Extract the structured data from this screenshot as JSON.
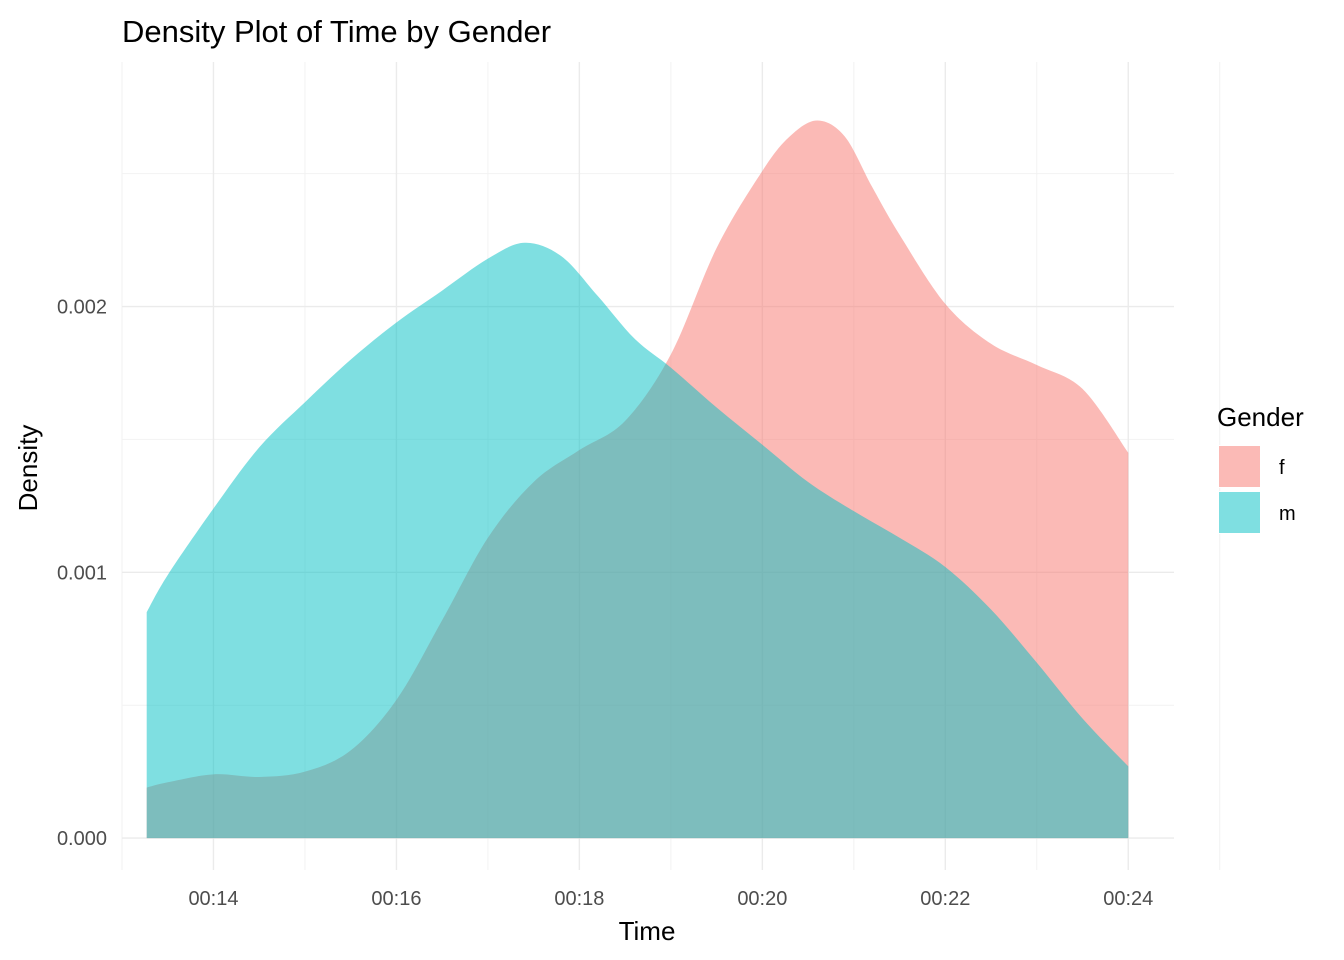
{
  "chart_data": {
    "type": "area",
    "subtype": "density",
    "title": "Density Plot of Time by Gender",
    "xlabel": "Time",
    "ylabel": "Density",
    "x_unit": "minutes",
    "xlim": [
      13.0,
      24.5
    ],
    "ylim": [
      -0.00012,
      0.00292
    ],
    "x_ticks": [
      14,
      16,
      18,
      20,
      22,
      24
    ],
    "x_tick_labels": [
      "00:14",
      "00:16",
      "00:18",
      "00:20",
      "00:22",
      "00:24"
    ],
    "y_ticks": [
      0.0,
      0.001,
      0.002
    ],
    "y_tick_labels": [
      "0.000",
      "0.001",
      "0.002"
    ],
    "grid": true,
    "legend": {
      "title": "Gender",
      "position": "right"
    },
    "fill_opacity": 0.5,
    "series": [
      {
        "name": "f",
        "color": "#F8766D",
        "x": [
          13.27,
          13.5,
          14.0,
          14.5,
          15.0,
          15.5,
          16.0,
          16.5,
          17.0,
          17.5,
          18.0,
          18.5,
          19.0,
          19.5,
          20.0,
          20.3,
          20.6,
          20.9,
          21.2,
          21.5,
          22.0,
          22.5,
          23.0,
          23.5,
          24.0
        ],
        "values": [
          0.00019,
          0.00021,
          0.00024,
          0.00023,
          0.00025,
          0.00033,
          0.00052,
          0.00082,
          0.00113,
          0.00134,
          0.00146,
          0.00157,
          0.00182,
          0.00222,
          0.00251,
          0.00264,
          0.0027,
          0.00264,
          0.00245,
          0.00227,
          0.00201,
          0.00186,
          0.00178,
          0.00169,
          0.00145
        ]
      },
      {
        "name": "m",
        "color": "#00BFC4",
        "x": [
          13.27,
          13.5,
          14.0,
          14.5,
          15.0,
          15.5,
          16.0,
          16.5,
          17.0,
          17.4,
          17.8,
          18.2,
          18.6,
          19.0,
          19.5,
          20.0,
          20.5,
          21.0,
          21.5,
          22.0,
          22.5,
          23.0,
          23.5,
          24.0
        ],
        "values": [
          0.00085,
          0.00099,
          0.00124,
          0.00147,
          0.00164,
          0.0018,
          0.00194,
          0.00206,
          0.00218,
          0.00224,
          0.00219,
          0.00204,
          0.00188,
          0.00177,
          0.00162,
          0.00148,
          0.00134,
          0.00123,
          0.00113,
          0.00102,
          0.00086,
          0.00066,
          0.00045,
          0.00027
        ]
      }
    ]
  }
}
